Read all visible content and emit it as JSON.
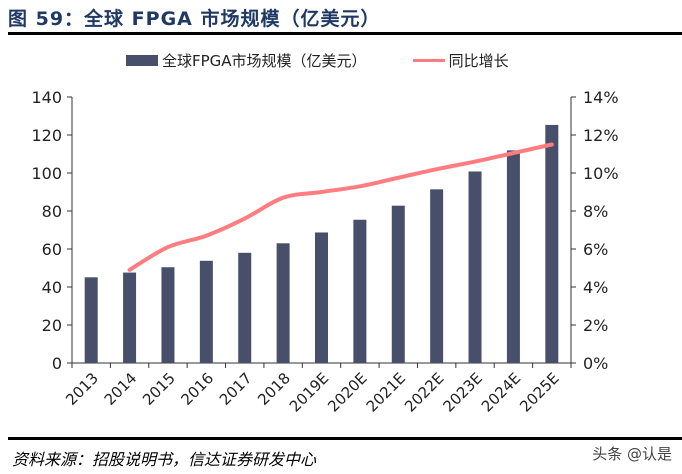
{
  "title": "图 59：全球 FPGA 市场规模（亿美元）",
  "source": "资料来源：招股说明书，信达证券研发中心",
  "watermark": "头条 @认是",
  "chart_data": {
    "type": "bar+line",
    "categories": [
      "2013",
      "2014",
      "2015",
      "2016",
      "2017",
      "2018",
      "2019E",
      "2020E",
      "2021E",
      "2022E",
      "2023E",
      "2024E",
      "2025E"
    ],
    "series": [
      {
        "name": "全球FPGA市场规模（亿美元）",
        "type": "bar",
        "axis": "left",
        "color": "#474f6b",
        "values": [
          45.1,
          47.6,
          50.4,
          53.8,
          58.0,
          63.0,
          68.7,
          75.4,
          82.8,
          91.4,
          100.8,
          111.9,
          125.3
        ]
      },
      {
        "name": "同比增长",
        "type": "line",
        "axis": "right",
        "color": "#ff7c80",
        "values": [
          null,
          4.9,
          6.1,
          6.7,
          7.6,
          8.7,
          9.0,
          9.3,
          9.75,
          10.2,
          10.6,
          11.05,
          11.5
        ]
      }
    ],
    "y_left": {
      "range": [
        0,
        140
      ],
      "ticks": [
        "0",
        "20",
        "40",
        "60",
        "80",
        "100",
        "120",
        "140"
      ]
    },
    "y_right": {
      "range": [
        0,
        14
      ],
      "ticks": [
        "0%",
        "2%",
        "4%",
        "6%",
        "8%",
        "10%",
        "12%",
        "14%"
      ]
    },
    "grid": false,
    "legend": "top"
  }
}
